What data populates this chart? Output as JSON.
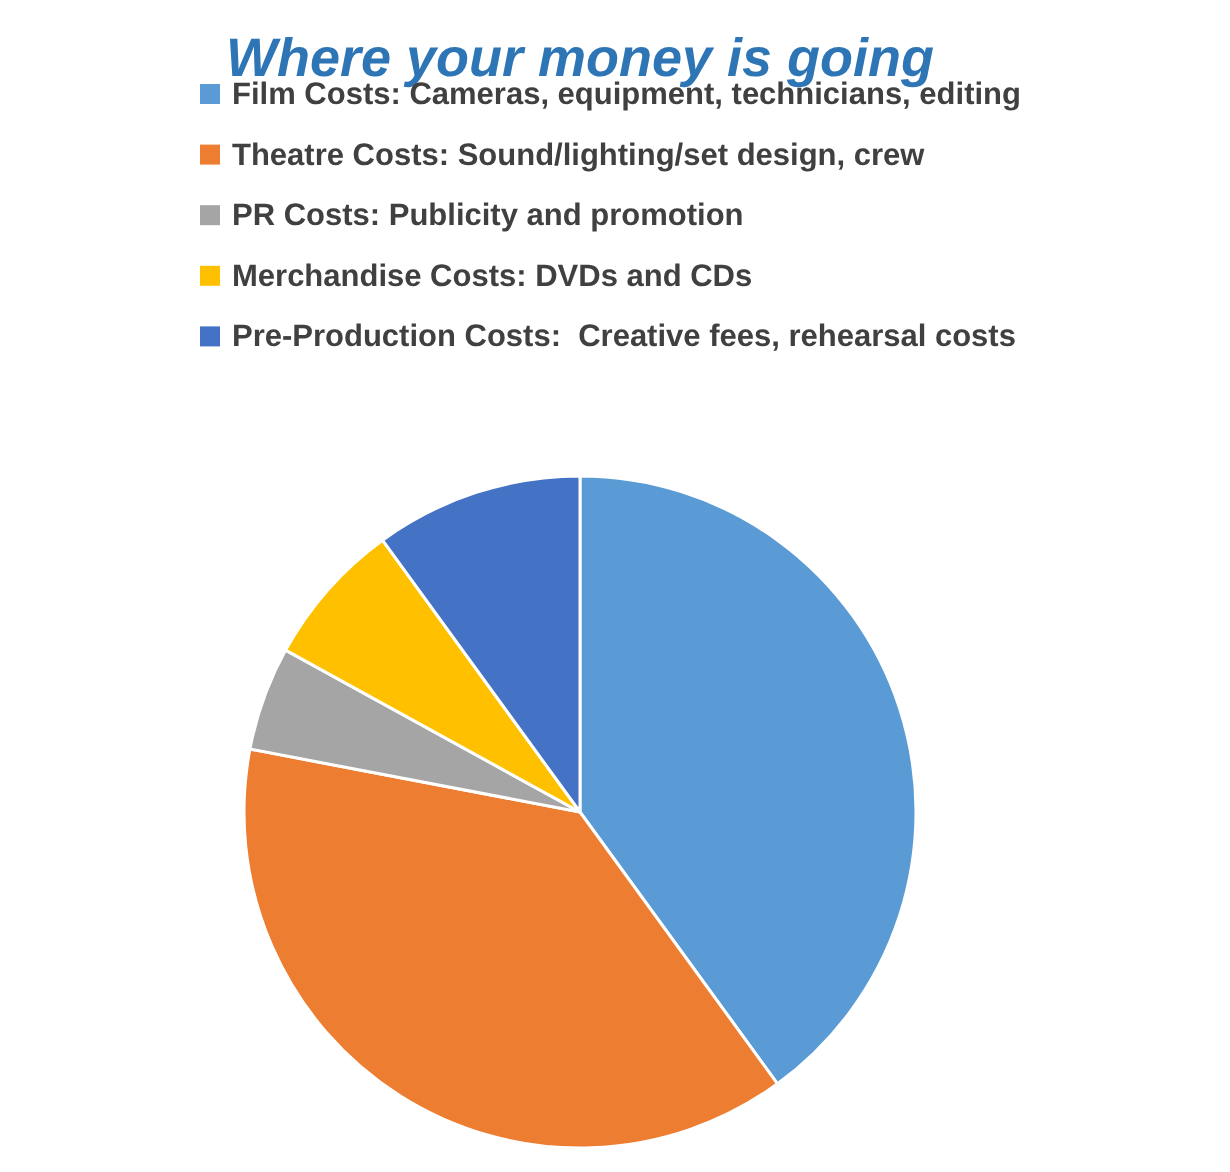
{
  "chart_data": {
    "type": "pie",
    "title": "Where your money is going",
    "categories": [
      "Film Costs: Cameras, equipment, technicians, editing",
      "Theatre Costs: Sound/lighting/set design, crew",
      "PR Costs: Publicity and promotion",
      "Merchandise Costs: DVDs and CDs",
      "Pre-Production Costs:  Creative fees, rehearsal costs"
    ],
    "values": [
      40,
      38,
      5,
      7,
      10
    ],
    "colors": [
      "#5b9bd5",
      "#ed7d31",
      "#a5a5a5",
      "#ffc000",
      "#4472c4"
    ],
    "legend": "top"
  }
}
